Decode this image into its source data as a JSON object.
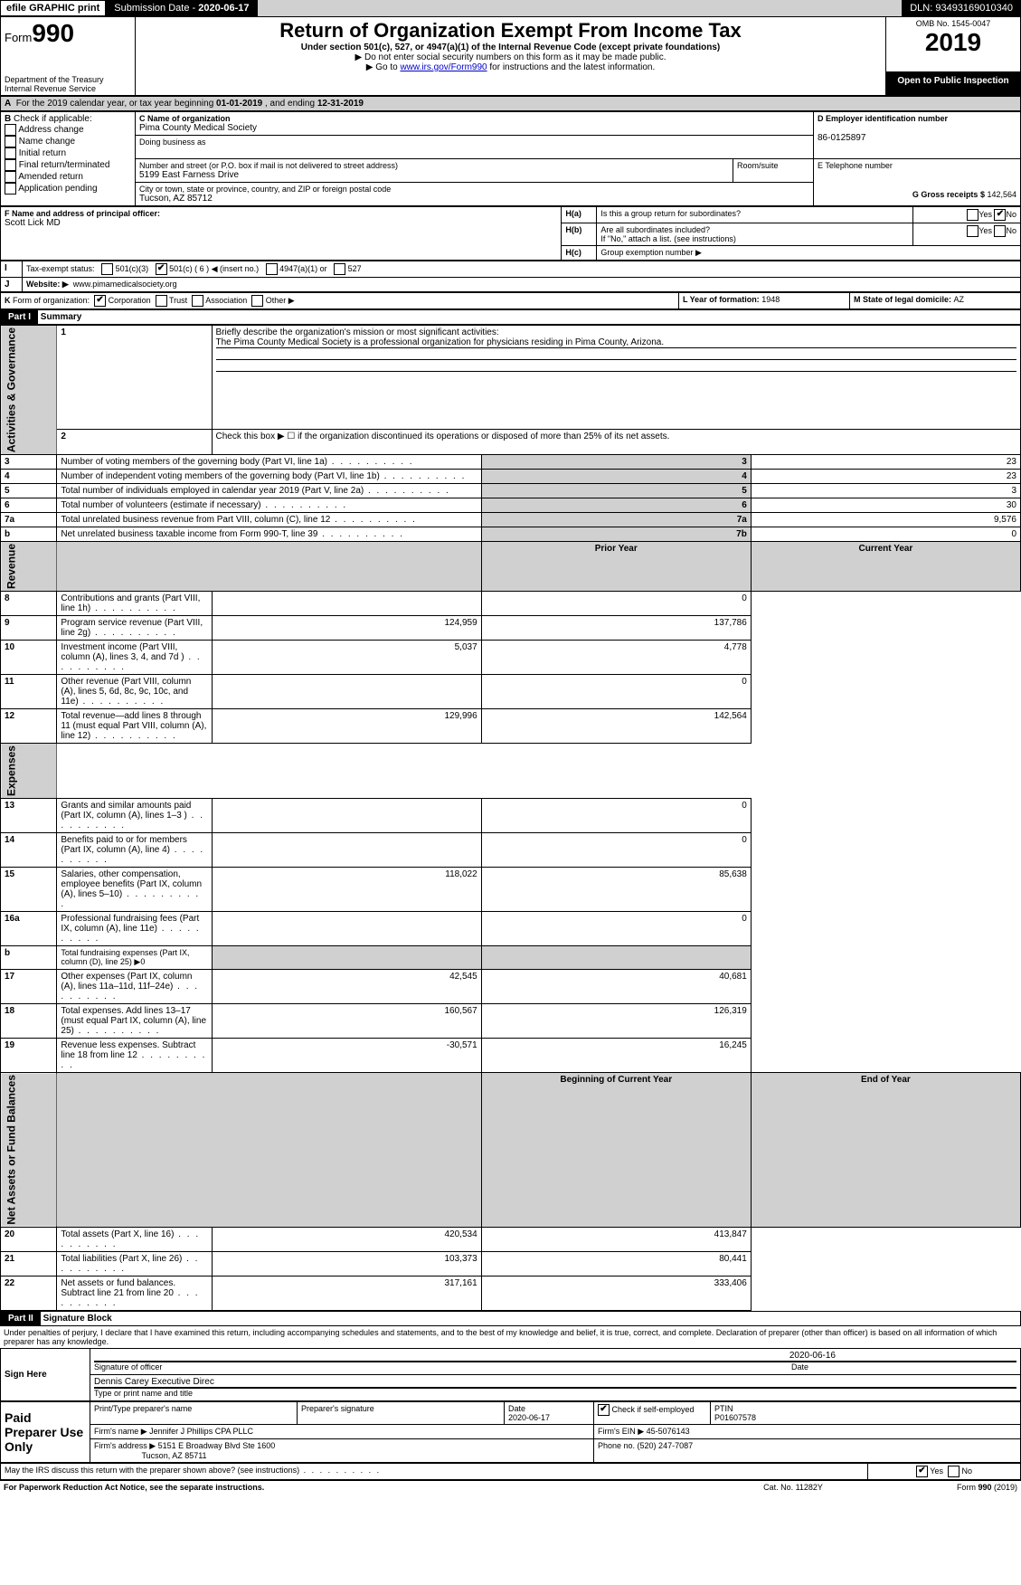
{
  "topbar": {
    "efile": "efile GRAPHIC print",
    "submission_label": "Submission Date - ",
    "submission_date": "2020-06-17",
    "dln_label": "DLN: ",
    "dln": "93493169010340"
  },
  "header": {
    "form_label": "Form",
    "form_number": "990",
    "dept": "Department of the Treasury",
    "irs": "Internal Revenue Service",
    "title": "Return of Organization Exempt From Income Tax",
    "under": "Under section 501(c), 527, or 4947(a)(1) of the Internal Revenue Code (except private foundations)",
    "note1": "▶ Do not enter social security numbers on this form as it may be made public.",
    "note2_pre": "▶ Go to ",
    "note2_link": "www.irs.gov/Form990",
    "note2_post": " for instructions and the latest information.",
    "omb_label": "OMB No. ",
    "omb": "1545-0047",
    "year": "2019",
    "open": "Open to Public Inspection"
  },
  "A": {
    "label": "For the 2019 calendar year, or tax year beginning ",
    "begin": "01-01-2019",
    "mid": " , and ending ",
    "end": "12-31-2019"
  },
  "B": {
    "label": "Check if applicable:",
    "items": [
      "Address change",
      "Name change",
      "Initial return",
      "Final return/terminated",
      "Amended return",
      "Application pending"
    ]
  },
  "C": {
    "name_label": "C Name of organization",
    "name": "Pima County Medical Society",
    "dba_label": "Doing business as",
    "street_label": "Number and street (or P.O. box if mail is not delivered to street address)",
    "street": "5199 East Farness Drive",
    "room_label": "Room/suite",
    "city_label": "City or town, state or province, country, and ZIP or foreign postal code",
    "city": "Tucson, AZ  85712"
  },
  "D": {
    "label": "D Employer identification number",
    "value": "86-0125897"
  },
  "E": {
    "label": "E Telephone number",
    "value": ""
  },
  "F": {
    "label": "F Name and address of principal officer:",
    "value": "Scott Lick MD"
  },
  "G": {
    "label": "G Gross receipts $ ",
    "value": "142,564"
  },
  "H": {
    "a_label": "Is this a group return for subordinates?",
    "b_label": "Are all subordinates included?",
    "b_note": "If \"No,\" attach a list. (see instructions)",
    "c_label": "Group exemption number ▶",
    "yes": "Yes",
    "no": "No",
    "a_checked": "no"
  },
  "I": {
    "label": "Tax-exempt status:",
    "c3": "501(c)(3)",
    "c_pre": "501(c) ( ",
    "c_num": "6",
    "c_post": " ) ◀ (insert no.)",
    "a4947": "4947(a)(1) or",
    "s527": "527",
    "checked": "501c"
  },
  "J": {
    "label": "Website: ▶",
    "value": "www.pimamedicalsociety.org"
  },
  "K": {
    "label": "Form of organization:",
    "corp": "Corporation",
    "trust": "Trust",
    "assoc": "Association",
    "other": "Other ▶",
    "checked": "corp"
  },
  "L": {
    "label": "L Year of formation: ",
    "value": "1948"
  },
  "M": {
    "label": "M State of legal domicile: ",
    "value": "AZ"
  },
  "part1": {
    "header": "Part I",
    "title": "Summary",
    "line1_label": "Briefly describe the organization's mission or most significant activities:",
    "line1_value": "The Pima County Medical Society is a professional organization for physicians residing in Pima County, Arizona.",
    "line2_label": "Check this box ▶ ☐ if the organization discontinued its operations or disposed of more than 25% of its net assets.",
    "prior_year": "Prior Year",
    "current_year": "Current Year",
    "begin_cy": "Beginning of Current Year",
    "end_cy": "End of Year",
    "rows_gov": [
      {
        "n": "3",
        "label": "Number of voting members of the governing body (Part VI, line 1a)",
        "nc": "3",
        "val": "23"
      },
      {
        "n": "4",
        "label": "Number of independent voting members of the governing body (Part VI, line 1b)",
        "nc": "4",
        "val": "23"
      },
      {
        "n": "5",
        "label": "Total number of individuals employed in calendar year 2019 (Part V, line 2a)",
        "nc": "5",
        "val": "3"
      },
      {
        "n": "6",
        "label": "Total number of volunteers (estimate if necessary)",
        "nc": "6",
        "val": "30"
      },
      {
        "n": "7a",
        "label": "Total unrelated business revenue from Part VIII, column (C), line 12",
        "nc": "7a",
        "val": "9,576"
      },
      {
        "n": "b",
        "label": "Net unrelated business taxable income from Form 990-T, line 39",
        "nc": "7b",
        "val": "0"
      }
    ],
    "rows_rev": [
      {
        "n": "8",
        "label": "Contributions and grants (Part VIII, line 1h)",
        "py": "",
        "cy": "0"
      },
      {
        "n": "9",
        "label": "Program service revenue (Part VIII, line 2g)",
        "py": "124,959",
        "cy": "137,786"
      },
      {
        "n": "10",
        "label": "Investment income (Part VIII, column (A), lines 3, 4, and 7d )",
        "py": "5,037",
        "cy": "4,778"
      },
      {
        "n": "11",
        "label": "Other revenue (Part VIII, column (A), lines 5, 6d, 8c, 9c, 10c, and 11e)",
        "py": "",
        "cy": "0"
      },
      {
        "n": "12",
        "label": "Total revenue—add lines 8 through 11 (must equal Part VIII, column (A), line 12)",
        "py": "129,996",
        "cy": "142,564"
      }
    ],
    "rows_exp": [
      {
        "n": "13",
        "label": "Grants and similar amounts paid (Part IX, column (A), lines 1–3 )",
        "py": "",
        "cy": "0"
      },
      {
        "n": "14",
        "label": "Benefits paid to or for members (Part IX, column (A), line 4)",
        "py": "",
        "cy": "0"
      },
      {
        "n": "15",
        "label": "Salaries, other compensation, employee benefits (Part IX, column (A), lines 5–10)",
        "py": "118,022",
        "cy": "85,638"
      },
      {
        "n": "16a",
        "label": "Professional fundraising fees (Part IX, column (A), line 11e)",
        "py": "",
        "cy": "0"
      },
      {
        "n": "b",
        "label": "Total fundraising expenses (Part IX, column (D), line 25) ▶0",
        "py": "—",
        "cy": "—"
      },
      {
        "n": "17",
        "label": "Other expenses (Part IX, column (A), lines 11a–11d, 11f–24e)",
        "py": "42,545",
        "cy": "40,681"
      },
      {
        "n": "18",
        "label": "Total expenses. Add lines 13–17 (must equal Part IX, column (A), line 25)",
        "py": "160,567",
        "cy": "126,319"
      },
      {
        "n": "19",
        "label": "Revenue less expenses. Subtract line 18 from line 12",
        "py": "-30,571",
        "cy": "16,245"
      }
    ],
    "rows_net": [
      {
        "n": "20",
        "label": "Total assets (Part X, line 16)",
        "py": "420,534",
        "cy": "413,847"
      },
      {
        "n": "21",
        "label": "Total liabilities (Part X, line 26)",
        "py": "103,373",
        "cy": "80,441"
      },
      {
        "n": "22",
        "label": "Net assets or fund balances. Subtract line 21 from line 20",
        "py": "317,161",
        "cy": "333,406"
      }
    ],
    "vlabels": {
      "gov": "Activities & Governance",
      "rev": "Revenue",
      "exp": "Expenses",
      "net": "Net Assets or Fund Balances"
    }
  },
  "part2": {
    "header": "Part II",
    "title": "Signature Block",
    "perjury": "Under penalties of perjury, I declare that I have examined this return, including accompanying schedules and statements, and to the best of my knowledge and belief, it is true, correct, and complete. Declaration of preparer (other than officer) is based on all information of which preparer has any knowledge.",
    "sign_here": "Sign Here",
    "sig_officer": "Signature of officer",
    "sig_date_label": "Date",
    "sig_date": "2020-06-16",
    "sig_name": "Dennis Carey  Executive Direc",
    "sig_name_label": "Type or print name and title",
    "paid": "Paid Preparer Use Only",
    "prep_name_label": "Print/Type preparer's name",
    "prep_sig_label": "Preparer's signature",
    "prep_date_label": "Date",
    "prep_date": "2020-06-17",
    "check_self": "Check ☑ if self-employed",
    "ptin_label": "PTIN",
    "ptin": "P01607578",
    "firm_name_label": "Firm's name    ▶ ",
    "firm_name": "Jennifer J Phillips CPA PLLC",
    "firm_ein_label": "Firm's EIN ▶ ",
    "firm_ein": "45-5076143",
    "firm_addr_label": "Firm's address ▶ ",
    "firm_addr1": "5151 E Broadway Blvd Ste 1600",
    "firm_addr2": "Tucson, AZ  85711",
    "phone_label": "Phone no. ",
    "phone": "(520) 247-7087",
    "discuss": "May the IRS discuss this return with the preparer shown above? (see instructions)",
    "yes": "Yes",
    "no": "No"
  },
  "footer": {
    "pra": "For Paperwork Reduction Act Notice, see the separate instructions.",
    "cat": "Cat. No. 11282Y",
    "form": "Form 990 (2019)"
  }
}
